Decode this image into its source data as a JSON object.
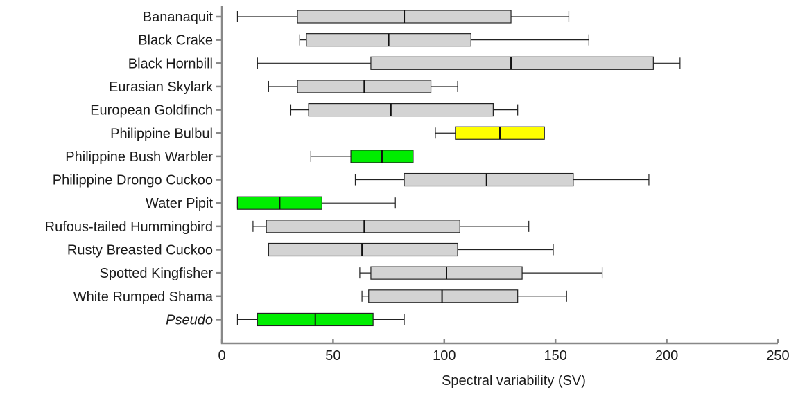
{
  "chart_data": {
    "type": "boxplot",
    "orientation": "horizontal",
    "title": "",
    "xlabel": "Spectral variability (SV)",
    "ylabel": "",
    "xlim": [
      0,
      250
    ],
    "xticks": [
      "0",
      "50",
      "100",
      "150",
      "200",
      "250"
    ],
    "grid": false,
    "legend": "none",
    "colors": {
      "default": "#d3d3d3",
      "green": "#00ee00",
      "yellow": "#ffff00"
    },
    "categories": [
      {
        "label": "Bananaquit",
        "italic": false,
        "min": 7,
        "q1": 34,
        "median": 82,
        "q3": 130,
        "max": 156,
        "color": "default"
      },
      {
        "label": "Black Crake",
        "italic": false,
        "min": 35,
        "q1": 38,
        "median": 75,
        "q3": 112,
        "max": 165,
        "color": "default"
      },
      {
        "label": "Black Hornbill",
        "italic": false,
        "min": 16,
        "q1": 67,
        "median": 130,
        "q3": 194,
        "max": 206,
        "color": "default"
      },
      {
        "label": "Eurasian Skylark",
        "italic": false,
        "min": 21,
        "q1": 34,
        "median": 64,
        "q3": 94,
        "max": 106,
        "color": "default"
      },
      {
        "label": "European Goldfinch",
        "italic": false,
        "min": 31,
        "q1": 39,
        "median": 76,
        "q3": 122,
        "max": 133,
        "color": "default"
      },
      {
        "label": "Philippine Bulbul",
        "italic": false,
        "min": 96,
        "q1": 105,
        "median": 125,
        "q3": 145,
        "max": 145,
        "color": "yellow"
      },
      {
        "label": "Philippine Bush Warbler",
        "italic": false,
        "min": 40,
        "q1": 58,
        "median": 72,
        "q3": 86,
        "max": 86,
        "color": "green"
      },
      {
        "label": "Philippine Drongo Cuckoo",
        "italic": false,
        "min": 60,
        "q1": 82,
        "median": 119,
        "q3": 158,
        "max": 192,
        "color": "default"
      },
      {
        "label": "Water Pipit",
        "italic": false,
        "min": 7,
        "q1": 7,
        "median": 26,
        "q3": 45,
        "max": 78,
        "color": "green"
      },
      {
        "label": "Rufous-tailed Hummingbird",
        "italic": false,
        "min": 14,
        "q1": 20,
        "median": 64,
        "q3": 107,
        "max": 138,
        "color": "default"
      },
      {
        "label": "Rusty Breasted Cuckoo",
        "italic": false,
        "min": 21,
        "q1": 21,
        "median": 63,
        "q3": 106,
        "max": 149,
        "color": "default"
      },
      {
        "label": "Spotted Kingfisher",
        "italic": false,
        "min": 62,
        "q1": 67,
        "median": 101,
        "q3": 135,
        "max": 171,
        "color": "default"
      },
      {
        "label": "White Rumped Shama",
        "italic": false,
        "min": 63,
        "q1": 66,
        "median": 99,
        "q3": 133,
        "max": 155,
        "color": "default"
      },
      {
        "label": "Pseudo",
        "italic": true,
        "min": 7,
        "q1": 16,
        "median": 42,
        "q3": 68,
        "max": 82,
        "color": "green"
      }
    ]
  }
}
